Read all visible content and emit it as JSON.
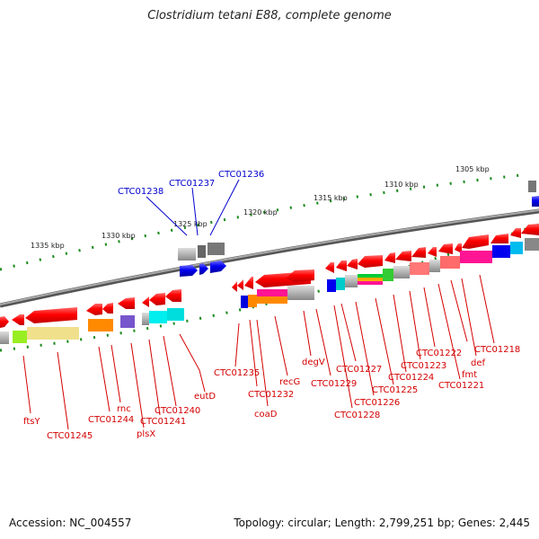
{
  "title": "Clostridium tetani E88, complete genome",
  "footer": {
    "accession": "Accession: NC_004557",
    "topology": "Topology: circular; Length: 2,799,251 bp; Genes: 2,445"
  },
  "kbp_labels": [
    "1305 kbp",
    "1310 kbp",
    "1315 kbp",
    "1320 kbp",
    "1325 kbp",
    "1330 kbp",
    "1335 kbp"
  ],
  "gene_labels": {
    "ftsY": "ftsY",
    "CTC01245": "CTC01245",
    "rnc": "rnc",
    "CTC01244": "CTC01244",
    "plsX": "plsX",
    "CTC01241": "CTC01241",
    "CTC01240": "CTC01240",
    "eutD": "eutD",
    "CTC01238": "CTC01238",
    "CTC01237": "CTC01237",
    "CTC01236": "CTC01236",
    "CTC01235": "CTC01235",
    "coaD": "coaD",
    "CTC01232": "CTC01232",
    "recG": "recG",
    "degV": "degV",
    "CTC01229": "CTC01229",
    "CTC01228": "CTC01228",
    "CTC01227": "CTC01227",
    "CTC01226": "CTC01226",
    "CTC01225": "CTC01225",
    "CTC01224": "CTC01224",
    "CTC01223": "CTC01223",
    "CTC01222": "CTC01222",
    "CTC01221": "CTC01221",
    "fmt": "fmt",
    "def": "def",
    "CTC01218": "CTC01218"
  },
  "colors": {
    "gene_forward": "#ff0000",
    "gene_blue": "#0000ee",
    "backbone": "#888888",
    "tick": "#1a8a1a",
    "label_red": "#d40000",
    "label_blue": "#0000cc"
  }
}
